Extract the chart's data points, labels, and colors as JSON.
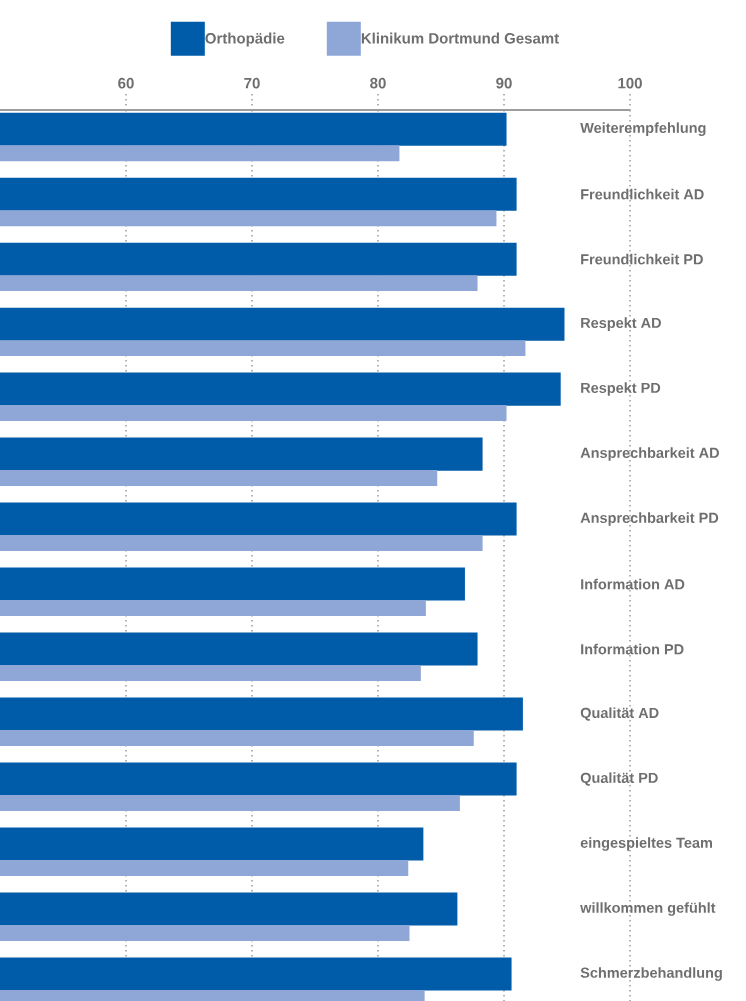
{
  "chart_data": {
    "type": "bar",
    "orientation": "horizontal",
    "categories": [
      "Weiterempfehlung",
      "Freundlichkeit AD",
      "Freundlichkeit PD",
      "Respekt AD",
      "Respekt PD",
      "Ansprechbarkeit AD",
      "Ansprechbarkeit PD",
      "Information AD",
      "Information PD",
      "Qualität AD",
      "Qualität PD",
      "eingespieltes Team",
      "willkommen gefühlt",
      "Schmerzbehandlung"
    ],
    "series": [
      {
        "name": "Orthopädie",
        "color": "#005ca9",
        "values": [
          90.2,
          91.0,
          91.0,
          94.8,
          94.5,
          88.3,
          91.0,
          86.9,
          87.9,
          91.5,
          91.0,
          83.6,
          86.3,
          90.6
        ]
      },
      {
        "name": "Klinikum Dortmund Gesamt",
        "color": "#8fa7d6",
        "values": [
          81.7,
          89.4,
          87.9,
          91.7,
          90.2,
          84.7,
          88.3,
          83.8,
          83.4,
          87.6,
          86.5,
          82.4,
          82.5,
          83.7
        ]
      }
    ],
    "xlim": [
      50,
      100
    ],
    "xticks": [
      60,
      70,
      80,
      90,
      100
    ],
    "grid": "x",
    "legend": "top"
  }
}
